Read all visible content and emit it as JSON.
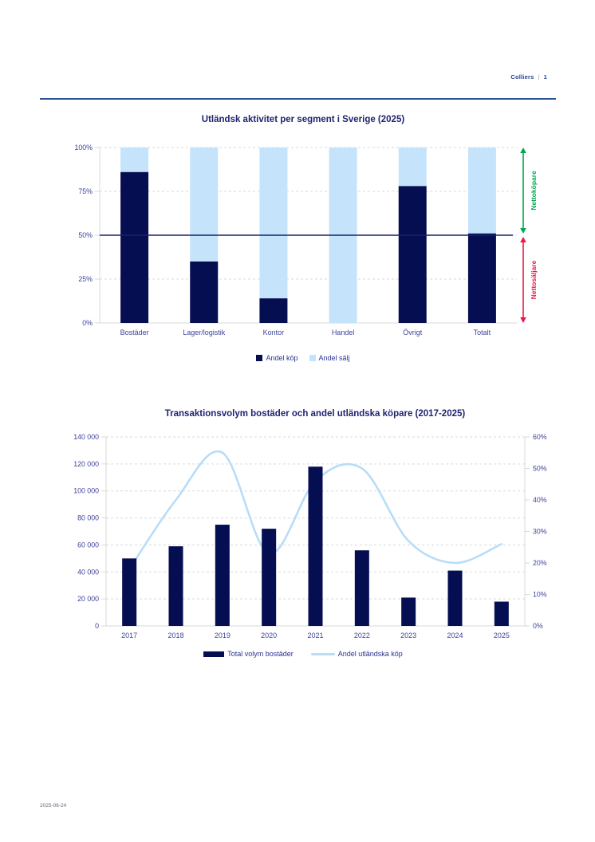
{
  "header": {
    "brand": "Colliers",
    "separator": "|",
    "page_number": "1"
  },
  "footer": {
    "date": "2025-06-24"
  },
  "colors": {
    "navy_bar": "#060E52",
    "light_blue": "#C5E3FB",
    "line_blue": "#B7DDF8",
    "fifty_line": "#16246B",
    "grid": "#D9D9D9",
    "axis_text": "#3E4499",
    "title_text": "#1F2370",
    "green": "#00A64F",
    "red": "#EE1744",
    "rule": "#2F5496"
  },
  "chart_data": [
    {
      "type": "bar",
      "stacked": true,
      "percent": true,
      "title": "Utländsk aktivitet per segment i Sverige (2025)",
      "categories": [
        "Bostäder",
        "Lager/logistik",
        "Kontor",
        "Handel",
        "Övrigt",
        "Totalt"
      ],
      "series": [
        {
          "name": "Andel köp",
          "color_key": "navy_bar",
          "values": [
            86,
            35,
            14,
            0,
            78,
            51
          ]
        },
        {
          "name": "Andel sälj",
          "color_key": "light_blue",
          "values": [
            14,
            65,
            86,
            100,
            22,
            49
          ]
        }
      ],
      "ylim": [
        0,
        100
      ],
      "y_ticks": [
        {
          "value": 0,
          "label": "0%"
        },
        {
          "value": 25,
          "label": "25%"
        },
        {
          "value": 50,
          "label": "50%"
        },
        {
          "value": 75,
          "label": "75%"
        },
        {
          "value": 100,
          "label": "100%"
        }
      ],
      "grid": "dashed horizontal",
      "reference_line": {
        "value": 50,
        "color_key": "fifty_line"
      },
      "annotations": [
        {
          "label": "Nettoköpare",
          "color_key": "green",
          "from": 100,
          "to": 50
        },
        {
          "label": "Nettosäljare",
          "color_key": "red",
          "from": 50,
          "to": 0
        }
      ],
      "legend_position": "bottom"
    },
    {
      "type": "bar+line",
      "title": "Transaktionsvolym bostäder och andel utländska köpare (2017-2025)",
      "categories": [
        "2017",
        "2018",
        "2019",
        "2020",
        "2021",
        "2022",
        "2023",
        "2024",
        "2025"
      ],
      "bar_series": {
        "name": "Total volym bostäder",
        "axis": "left",
        "color_key": "navy_bar",
        "values": [
          50000,
          59000,
          75000,
          72000,
          118000,
          56000,
          21000,
          41000,
          18000
        ]
      },
      "line_series": {
        "name": "Andel utländska köp",
        "axis": "right",
        "color_key": "line_blue",
        "smooth": true,
        "values_percent": [
          18,
          40,
          55,
          23,
          46,
          50,
          27,
          20,
          26
        ]
      },
      "left_axis": {
        "max": 140000,
        "ticks": [
          {
            "value": 0,
            "label": "0"
          },
          {
            "value": 20000,
            "label": "20 000"
          },
          {
            "value": 40000,
            "label": "40 000"
          },
          {
            "value": 60000,
            "label": "60 000"
          },
          {
            "value": 80000,
            "label": "80 000"
          },
          {
            "value": 100000,
            "label": "100 000"
          },
          {
            "value": 120000,
            "label": "120 000"
          },
          {
            "value": 140000,
            "label": "140 000"
          }
        ]
      },
      "right_axis": {
        "max": 60,
        "ticks": [
          {
            "value": 0,
            "label": "0%"
          },
          {
            "value": 10,
            "label": "10%"
          },
          {
            "value": 20,
            "label": "20%"
          },
          {
            "value": 30,
            "label": "30%"
          },
          {
            "value": 40,
            "label": "40%"
          },
          {
            "value": 50,
            "label": "50%"
          },
          {
            "value": 60,
            "label": "60%"
          }
        ]
      },
      "grid": "dashed horizontal",
      "legend_position": "bottom"
    }
  ]
}
